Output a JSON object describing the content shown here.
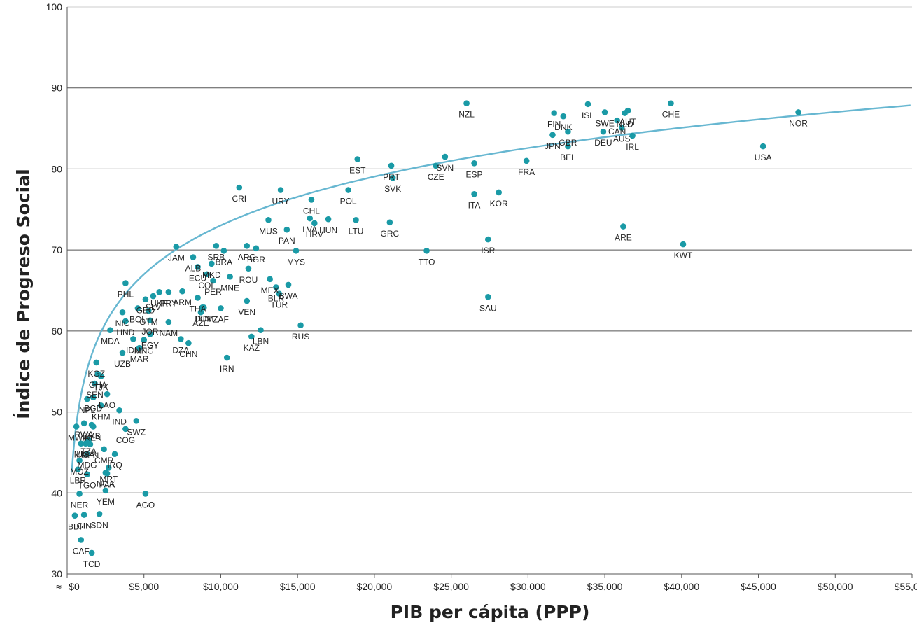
{
  "chart_data": {
    "type": "scatter",
    "title": "",
    "xlabel": "PIB per cápita (PPP)",
    "ylabel": "Índice de Progreso Social",
    "xlim": [
      0,
      55000
    ],
    "ylim": [
      30,
      100
    ],
    "x_ticks": [
      0,
      5000,
      10000,
      15000,
      20000,
      25000,
      30000,
      35000,
      40000,
      45000,
      50000,
      55000
    ],
    "x_tick_labels": [
      "$0",
      "$5,000",
      "$10,000",
      "$15,000",
      "$20,000",
      "$25,000",
      "$30,000",
      "$35,000",
      "$40,000",
      "$45,000",
      "$50,000",
      "$55,000"
    ],
    "y_ticks": [
      30,
      40,
      50,
      60,
      70,
      80,
      90,
      100
    ],
    "y_tick_labels": [
      "30",
      "40",
      "50",
      "60",
      "70",
      "80",
      "90",
      "100"
    ],
    "grid": "horizontal",
    "axis_break_symbol": "≈",
    "colors": {
      "points": "#1a9aa6",
      "trend": "#67b7d1",
      "grid": "#555555"
    },
    "trend": {
      "type": "logarithmic",
      "a": -7.1,
      "b": 8.7
    },
    "points": [
      {
        "label": "NZL",
        "x": 26000,
        "y": 88.1
      },
      {
        "label": "CHE",
        "x": 39300,
        "y": 88.1
      },
      {
        "label": "NOR",
        "x": 47600,
        "y": 87.0
      },
      {
        "label": "ISL",
        "x": 33900,
        "y": 88.0
      },
      {
        "label": "FIN",
        "x": 31700,
        "y": 86.9
      },
      {
        "label": "DNK",
        "x": 32300,
        "y": 86.5
      },
      {
        "label": "SWE",
        "x": 35000,
        "y": 87.0
      },
      {
        "label": "CAN",
        "x": 35800,
        "y": 86.0
      },
      {
        "label": "NLD",
        "x": 36300,
        "y": 86.9
      },
      {
        "label": "AUS",
        "x": 36100,
        "y": 85.1
      },
      {
        "label": "JPN",
        "x": 31600,
        "y": 84.2
      },
      {
        "label": "GBR",
        "x": 32600,
        "y": 84.6
      },
      {
        "label": "DEU",
        "x": 34900,
        "y": 84.6
      },
      {
        "label": "AUT",
        "x": 36500,
        "y": 87.2
      },
      {
        "label": "IRL",
        "x": 36800,
        "y": 84.1
      },
      {
        "label": "BEL",
        "x": 32600,
        "y": 82.8
      },
      {
        "label": "USA",
        "x": 45300,
        "y": 82.8
      },
      {
        "label": "FRA",
        "x": 29900,
        "y": 81.0
      },
      {
        "label": "EST",
        "x": 18900,
        "y": 81.2
      },
      {
        "label": "PRT",
        "x": 21100,
        "y": 80.4
      },
      {
        "label": "SVK",
        "x": 21200,
        "y": 78.9
      },
      {
        "label": "CZE",
        "x": 24000,
        "y": 80.4
      },
      {
        "label": "SVN",
        "x": 24600,
        "y": 81.5
      },
      {
        "label": "ESP",
        "x": 26500,
        "y": 80.7
      },
      {
        "label": "ITA",
        "x": 26500,
        "y": 76.9
      },
      {
        "label": "KOR",
        "x": 28100,
        "y": 77.1
      },
      {
        "label": "CRI",
        "x": 11200,
        "y": 77.7
      },
      {
        "label": "URY",
        "x": 13900,
        "y": 77.4
      },
      {
        "label": "POL",
        "x": 18300,
        "y": 77.4
      },
      {
        "label": "CHL",
        "x": 15900,
        "y": 76.2
      },
      {
        "label": "LVA",
        "x": 15800,
        "y": 73.9
      },
      {
        "label": "HRV",
        "x": 16100,
        "y": 73.3
      },
      {
        "label": "HUN",
        "x": 17000,
        "y": 73.8
      },
      {
        "label": "LTU",
        "x": 18800,
        "y": 73.7
      },
      {
        "label": "GRC",
        "x": 21000,
        "y": 73.4
      },
      {
        "label": "MUS",
        "x": 13100,
        "y": 73.7
      },
      {
        "label": "PAN",
        "x": 14300,
        "y": 72.5
      },
      {
        "label": "MYS",
        "x": 14900,
        "y": 69.9
      },
      {
        "label": "ISR",
        "x": 27400,
        "y": 71.3
      },
      {
        "label": "TTO",
        "x": 23400,
        "y": 69.9
      },
      {
        "label": "ARE",
        "x": 36200,
        "y": 72.9
      },
      {
        "label": "KWT",
        "x": 40100,
        "y": 70.7
      },
      {
        "label": "SAU",
        "x": 27400,
        "y": 64.2
      },
      {
        "label": "JAM",
        "x": 7100,
        "y": 70.4
      },
      {
        "label": "SRB",
        "x": 9700,
        "y": 70.5
      },
      {
        "label": "BRA",
        "x": 10200,
        "y": 69.9
      },
      {
        "label": "ARG",
        "x": 11700,
        "y": 70.5
      },
      {
        "label": "BGR",
        "x": 12300,
        "y": 70.2
      },
      {
        "label": "ALB",
        "x": 8200,
        "y": 69.1
      },
      {
        "label": "ECU",
        "x": 8500,
        "y": 67.9
      },
      {
        "label": "MKD",
        "x": 9400,
        "y": 68.3
      },
      {
        "label": "COL",
        "x": 9100,
        "y": 67.0
      },
      {
        "label": "PER",
        "x": 9500,
        "y": 66.2
      },
      {
        "label": "MNE",
        "x": 10600,
        "y": 66.7
      },
      {
        "label": "ROU",
        "x": 11800,
        "y": 67.7
      },
      {
        "label": "MEX",
        "x": 13200,
        "y": 66.4
      },
      {
        "label": "BLR",
        "x": 13600,
        "y": 65.4
      },
      {
        "label": "BWA",
        "x": 14400,
        "y": 65.7
      },
      {
        "label": "TUR",
        "x": 13800,
        "y": 64.6
      },
      {
        "label": "VEN",
        "x": 11700,
        "y": 63.7
      },
      {
        "label": "PHL",
        "x": 3800,
        "y": 65.9
      },
      {
        "label": "SLV",
        "x": 5600,
        "y": 64.3
      },
      {
        "label": "UKR",
        "x": 6000,
        "y": 64.8
      },
      {
        "label": "PRY",
        "x": 6600,
        "y": 64.8
      },
      {
        "label": "GEO",
        "x": 5100,
        "y": 63.9
      },
      {
        "label": "ARM",
        "x": 7500,
        "y": 64.9
      },
      {
        "label": "THA",
        "x": 8500,
        "y": 64.1
      },
      {
        "label": "TUN",
        "x": 8800,
        "y": 62.9
      },
      {
        "label": "DOM",
        "x": 8900,
        "y": 62.9
      },
      {
        "label": "AZE",
        "x": 8700,
        "y": 62.3
      },
      {
        "label": "ZAF",
        "x": 10000,
        "y": 62.8
      },
      {
        "label": "BOL",
        "x": 4600,
        "y": 62.8
      },
      {
        "label": "NIC",
        "x": 3600,
        "y": 62.3
      },
      {
        "label": "HND",
        "x": 3800,
        "y": 61.2
      },
      {
        "label": "GTM",
        "x": 5300,
        "y": 62.5
      },
      {
        "label": "JOR",
        "x": 5400,
        "y": 61.3
      },
      {
        "label": "NAM",
        "x": 6600,
        "y": 61.1
      },
      {
        "label": "IDN",
        "x": 4300,
        "y": 59.0
      },
      {
        "label": "MNG",
        "x": 5000,
        "y": 58.9
      },
      {
        "label": "UZB",
        "x": 3600,
        "y": 57.3
      },
      {
        "label": "EGY",
        "x": 5400,
        "y": 59.6
      },
      {
        "label": "MAR",
        "x": 4700,
        "y": 57.9
      },
      {
        "label": "DZA",
        "x": 7400,
        "y": 59.0
      },
      {
        "label": "CHN",
        "x": 7900,
        "y": 58.5
      },
      {
        "label": "IRN",
        "x": 10400,
        "y": 56.7
      },
      {
        "label": "KAZ",
        "x": 12000,
        "y": 59.3
      },
      {
        "label": "LBN",
        "x": 12600,
        "y": 60.1
      },
      {
        "label": "RUS",
        "x": 15200,
        "y": 60.7
      },
      {
        "label": "MDA",
        "x": 2800,
        "y": 60.1
      },
      {
        "label": "IND",
        "x": 3400,
        "y": 50.2
      },
      {
        "label": "SWZ",
        "x": 4500,
        "y": 48.9
      },
      {
        "label": "COG",
        "x": 3800,
        "y": 47.9
      },
      {
        "label": "IRQ",
        "x": 3100,
        "y": 44.8
      },
      {
        "label": "AGO",
        "x": 5100,
        "y": 39.9
      },
      {
        "label": "KGZ",
        "x": 1900,
        "y": 56.1
      },
      {
        "label": "GHA",
        "x": 2000,
        "y": 54.7
      },
      {
        "label": "TJK",
        "x": 2200,
        "y": 54.4
      },
      {
        "label": "SEN",
        "x": 1800,
        "y": 53.5
      },
      {
        "label": "LAO",
        "x": 2600,
        "y": 52.2
      },
      {
        "label": "NPL",
        "x": 1300,
        "y": 51.6
      },
      {
        "label": "BGD",
        "x": 1700,
        "y": 51.8
      },
      {
        "label": "KHM",
        "x": 2200,
        "y": 50.8
      },
      {
        "label": "RWA",
        "x": 1100,
        "y": 48.6
      },
      {
        "label": "MWI",
        "x": 600,
        "y": 48.2
      },
      {
        "label": "ZMB",
        "x": 1600,
        "y": 48.4
      },
      {
        "label": "UGA",
        "x": 1200,
        "y": 46.1
      },
      {
        "label": "TZA",
        "x": 1400,
        "y": 46.5
      },
      {
        "label": "KEN",
        "x": 1700,
        "y": 48.2
      },
      {
        "label": "MLI",
        "x": 900,
        "y": 46.1
      },
      {
        "label": "BEN",
        "x": 1500,
        "y": 46.0
      },
      {
        "label": "CMR",
        "x": 2400,
        "y": 45.4
      },
      {
        "label": "MOZ",
        "x": 800,
        "y": 44.0
      },
      {
        "label": "MDG",
        "x": 1300,
        "y": 44.8
      },
      {
        "label": "LBR",
        "x": 700,
        "y": 42.9
      },
      {
        "label": "TGO",
        "x": 1300,
        "y": 42.3
      },
      {
        "label": "MRT",
        "x": 2700,
        "y": 43.1
      },
      {
        "label": "NGA",
        "x": 2500,
        "y": 42.5
      },
      {
        "label": "PAK",
        "x": 2600,
        "y": 42.4
      },
      {
        "label": "NER",
        "x": 800,
        "y": 39.9
      },
      {
        "label": "YEM",
        "x": 2500,
        "y": 40.3
      },
      {
        "label": "SDN",
        "x": 2100,
        "y": 37.4
      },
      {
        "label": "GIN",
        "x": 1100,
        "y": 37.3
      },
      {
        "label": "BDI",
        "x": 500,
        "y": 37.2
      },
      {
        "label": "CAF",
        "x": 900,
        "y": 34.2
      },
      {
        "label": "TCD",
        "x": 1600,
        "y": 32.6
      }
    ]
  }
}
